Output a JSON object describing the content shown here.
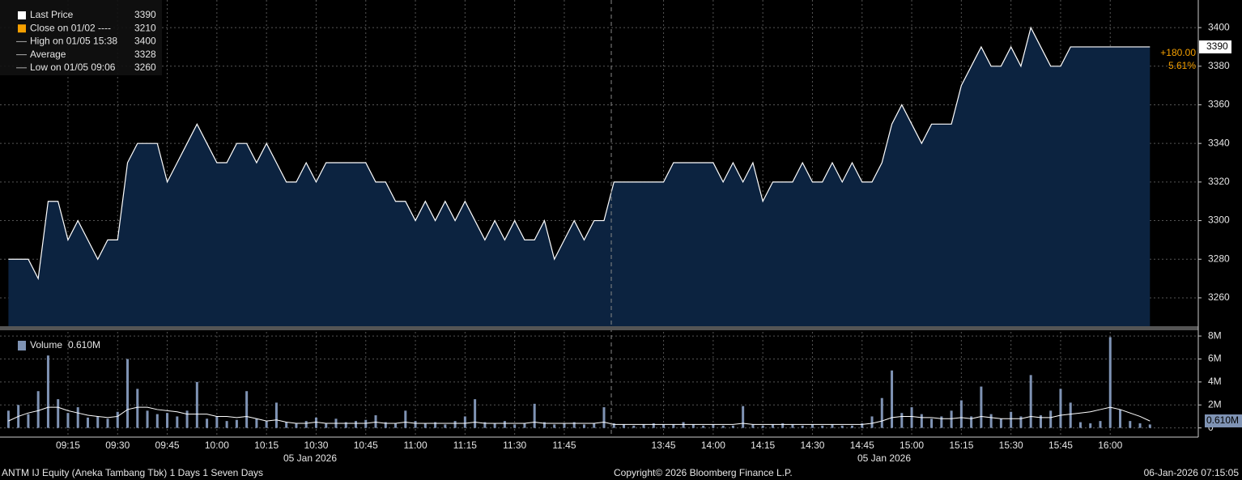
{
  "chart_data": [
    {
      "type": "area",
      "color": "#0c2340",
      "line_color": "#ffffff",
      "values": [
        3280,
        3280,
        3280,
        3270,
        3310,
        3310,
        3290,
        3300,
        3290,
        3280,
        3290,
        3290,
        3330,
        3340,
        3340,
        3340,
        3320,
        3330,
        3340,
        3350,
        3340,
        3330,
        3330,
        3340,
        3340,
        3330,
        3340,
        3330,
        3320,
        3320,
        3330,
        3320,
        3330,
        3330,
        3330,
        3330,
        3330,
        3320,
        3320,
        3310,
        3310,
        3300,
        3310,
        3300,
        3310,
        3300,
        3310,
        3300,
        3290,
        3300,
        3290,
        3300,
        3290,
        3290,
        3300,
        3280,
        3290,
        3300,
        3290,
        3300,
        3300,
        3320,
        3320,
        3320,
        3320,
        3320,
        3320,
        3330,
        3330,
        3330,
        3330,
        3330,
        3320,
        3330,
        3320,
        3330,
        3310,
        3320,
        3320,
        3320,
        3330,
        3320,
        3320,
        3330,
        3320,
        3330,
        3320,
        3320,
        3330,
        3350,
        3360,
        3350,
        3340,
        3350,
        3350,
        3350,
        3370,
        3380,
        3390,
        3380,
        3380,
        3390,
        3380,
        3400,
        3390,
        3380,
        3380,
        3390,
        3390,
        3390,
        3390,
        3390,
        3390,
        3390,
        3390,
        3390
      ],
      "ylim": [
        3245.3,
        3414.3
      ],
      "yticks": [
        3260,
        3280,
        3300,
        3320,
        3340,
        3360,
        3380,
        3400
      ],
      "grid": true,
      "last_value": 3390,
      "annotations": [
        "+180.00",
        "5.61%"
      ],
      "legend": [
        {
          "label": "Last Price",
          "value": 3390,
          "color": "#ffffff"
        },
        {
          "label": "Close on 01/02 ----",
          "value": 3210,
          "color": "#f5a000"
        },
        {
          "label": "High on 01/05 15:38",
          "value": 3400,
          "color": "#aaaaaa"
        },
        {
          "label": "Average",
          "value": 3328,
          "color": "#aaaaaa"
        },
        {
          "label": "Low on 01/05 09:06",
          "value": 3260,
          "color": "#aaaaaa"
        }
      ]
    },
    {
      "type": "bar",
      "categories": [
        null,
        null,
        null,
        null,
        null,
        null,
        "09:15",
        null,
        null,
        null,
        null,
        "09:30",
        null,
        null,
        null,
        null,
        "09:45",
        null,
        null,
        null,
        null,
        "10:00",
        null,
        null,
        null,
        null,
        "10:15",
        null,
        null,
        null,
        null,
        "10:30",
        null,
        null,
        null,
        null,
        "10:45",
        null,
        null,
        null,
        null,
        "11:00",
        null,
        null,
        null,
        null,
        "11:15",
        null,
        null,
        null,
        null,
        "11:30",
        null,
        null,
        null,
        null,
        "11:45",
        null,
        null,
        null,
        null,
        null,
        null,
        null,
        null,
        null,
        "13:45",
        null,
        null,
        null,
        null,
        "14:00",
        null,
        null,
        null,
        null,
        "14:15",
        null,
        null,
        null,
        null,
        "14:30",
        null,
        null,
        null,
        null,
        "14:45",
        null,
        null,
        null,
        null,
        "15:00",
        null,
        null,
        null,
        null,
        "15:15",
        null,
        null,
        null,
        null,
        "15:30",
        null,
        null,
        null,
        null,
        "15:45",
        null,
        null,
        null,
        null,
        "16:00",
        null,
        null,
        null,
        null
      ],
      "x_sublabels": [
        "05 Jan 2026",
        "05 Jan 2026"
      ],
      "series": [
        {
          "name": "Volume",
          "color": "#7f93b4",
          "values": [
            1.5,
            2.0,
            1.2,
            3.2,
            6.3,
            2.5,
            1.3,
            1.8,
            0.9,
            1.0,
            0.8,
            1.4,
            6.0,
            3.4,
            1.5,
            1.2,
            1.3,
            1.0,
            1.5,
            4.0,
            0.8,
            1.0,
            0.6,
            0.7,
            3.2,
            0.8,
            0.6,
            2.2,
            0.5,
            0.4,
            0.6,
            0.9,
            0.4,
            0.8,
            0.5,
            0.6,
            0.7,
            1.1,
            0.5,
            0.4,
            1.5,
            0.6,
            0.4,
            0.5,
            0.3,
            0.6,
            1.0,
            2.5,
            0.5,
            0.4,
            0.6,
            0.3,
            0.4,
            2.1,
            0.5,
            0.3,
            0.4,
            0.5,
            0.3,
            0.4,
            1.8,
            0.4,
            0.3,
            0.2,
            0.3,
            0.4,
            0.3,
            0.3,
            0.5,
            0.3,
            0.2,
            0.3,
            0.2,
            0.2,
            1.9,
            0.3,
            0.2,
            0.3,
            0.4,
            0.3,
            0.2,
            0.3,
            0.2,
            0.3,
            0.2,
            0.2,
            0.4,
            1.0,
            2.6,
            5.0,
            1.3,
            1.8,
            1.2,
            0.8,
            1.0,
            1.5,
            2.4,
            1.0,
            3.6,
            1.2,
            0.8,
            1.4,
            1.0,
            4.6,
            1.1,
            1.5,
            3.4,
            2.2,
            0.5,
            0.4,
            0.6,
            7.9,
            1.6,
            0.6,
            0.4,
            0.3
          ]
        },
        {
          "type": "line",
          "color": "#ffffff",
          "values": [
            0.6,
            1.0,
            1.3,
            1.5,
            1.8,
            1.8,
            1.5,
            1.3,
            1.1,
            1.0,
            0.9,
            1.0,
            1.6,
            1.8,
            1.8,
            1.6,
            1.5,
            1.4,
            1.2,
            1.2,
            1.2,
            1.0,
            1.0,
            0.9,
            1.0,
            0.8,
            0.6,
            0.7,
            0.5,
            0.4,
            0.4,
            0.5,
            0.4,
            0.4,
            0.4,
            0.4,
            0.4,
            0.5,
            0.4,
            0.4,
            0.5,
            0.4,
            0.4,
            0.4,
            0.4,
            0.4,
            0.4,
            0.5,
            0.4,
            0.4,
            0.4,
            0.4,
            0.4,
            0.5,
            0.4,
            0.4,
            0.4,
            0.4,
            0.4,
            0.4,
            0.5,
            0.3,
            0.3,
            0.3,
            0.3,
            0.3,
            0.3,
            0.3,
            0.3,
            0.3,
            0.3,
            0.3,
            0.3,
            0.3,
            0.4,
            0.3,
            0.3,
            0.3,
            0.3,
            0.3,
            0.3,
            0.3,
            0.3,
            0.3,
            0.3,
            0.3,
            0.3,
            0.4,
            0.6,
            0.9,
            1.0,
            1.0,
            0.9,
            0.9,
            0.8,
            0.8,
            0.9,
            0.8,
            1.0,
            0.9,
            0.8,
            0.8,
            0.8,
            1.0,
            0.9,
            0.9,
            1.1,
            1.2,
            1.3,
            1.4,
            1.6,
            1.8,
            1.6,
            1.3,
            1.0,
            0.6
          ]
        }
      ],
      "legend_value": {
        "value": 0.61,
        "label": "0.610M"
      },
      "ylim": [
        -0.8,
        8.5
      ],
      "yticks": [
        0,
        {
          "value": 2,
          "label": "2M"
        },
        {
          "value": 4,
          "label": "4M"
        },
        {
          "value": 6,
          "label": "6M"
        },
        {
          "value": 8,
          "label": "8M"
        }
      ],
      "grid": true
    }
  ],
  "footer": {
    "left": "ANTM IJ Equity (Aneka Tambang Tbk) 1 Days 1 Seven Days",
    "center": "Copyright© 2026 Bloomberg Finance L.P.",
    "right": "06-Jan-2026 07:15:05"
  }
}
